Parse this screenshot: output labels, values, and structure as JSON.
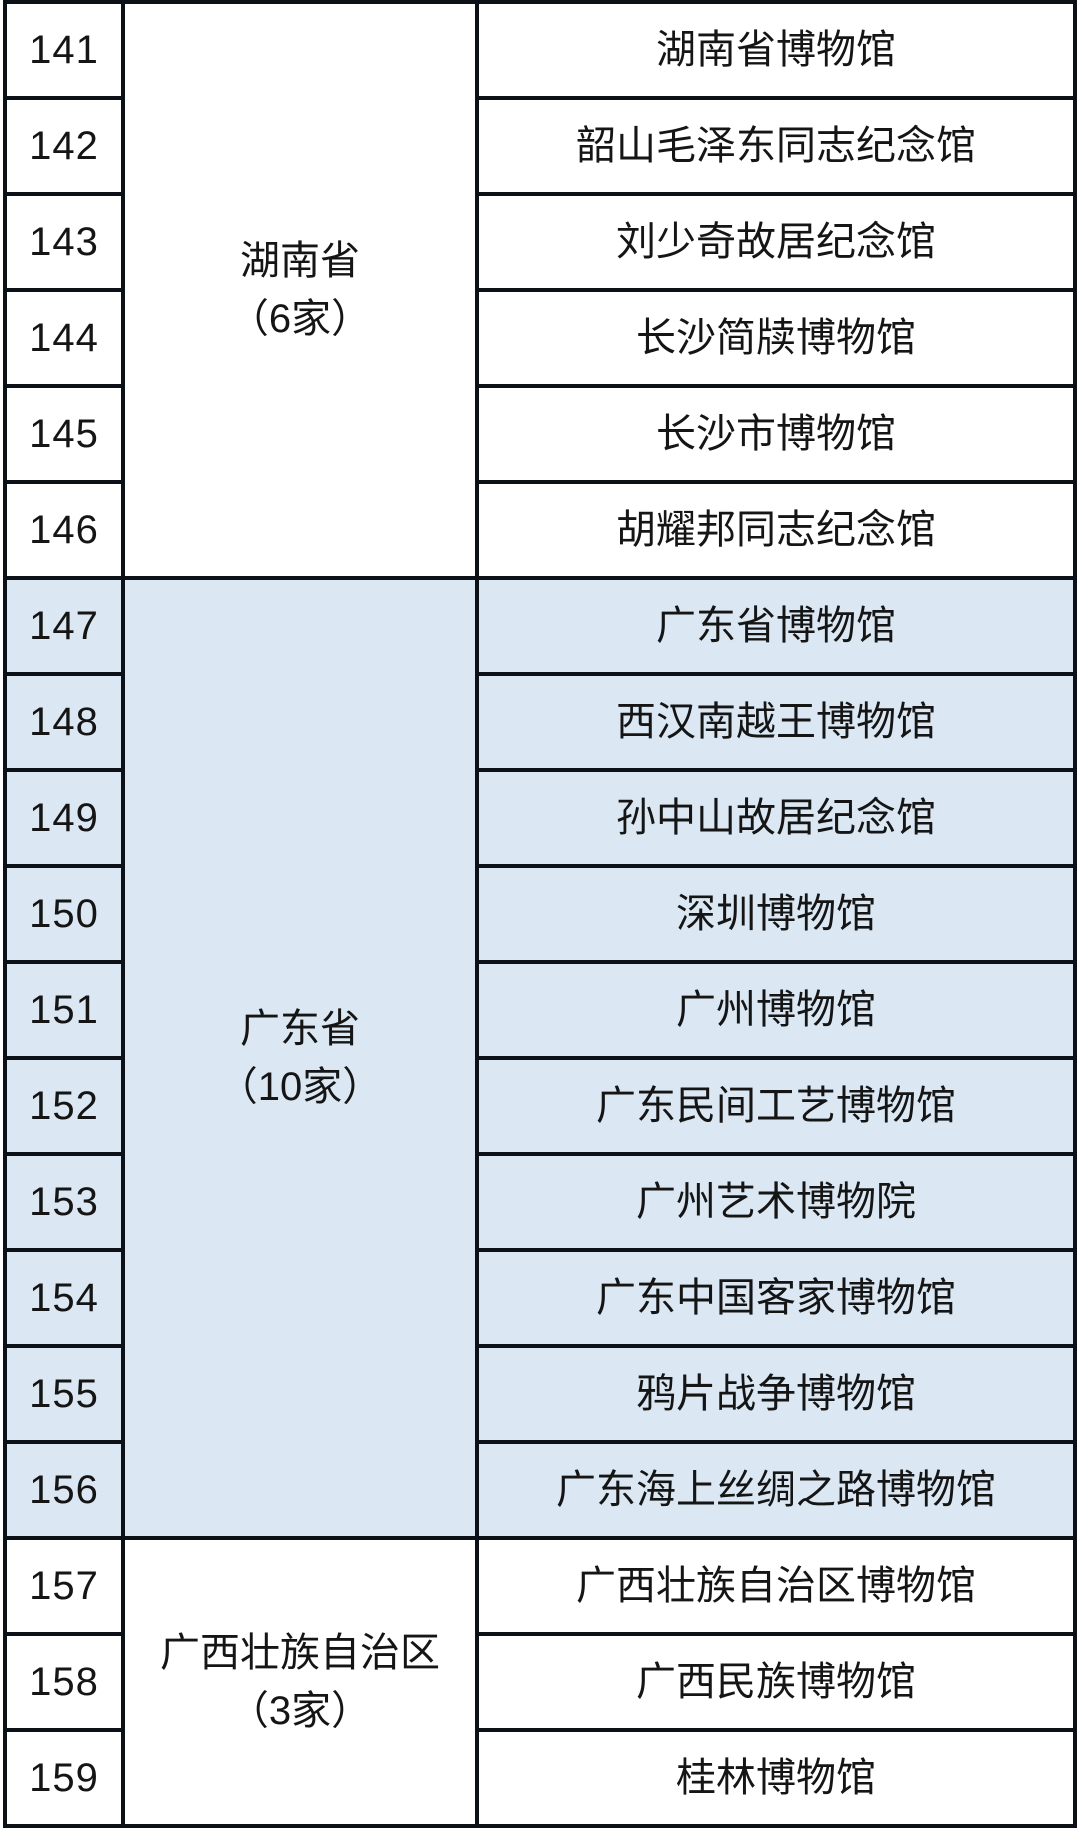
{
  "table": {
    "colors": {
      "highlight_bg": "#dbe8f4",
      "border": "#0c1017",
      "text": "#151515",
      "background": "#ffffff"
    },
    "sections": [
      {
        "province": "湖南省",
        "count_label": "（6家）",
        "highlighted": false,
        "rows": [
          {
            "no": "141",
            "museum": "湖南省博物馆"
          },
          {
            "no": "142",
            "museum": "韶山毛泽东同志纪念馆"
          },
          {
            "no": "143",
            "museum": "刘少奇故居纪念馆"
          },
          {
            "no": "144",
            "museum": "长沙简牍博物馆"
          },
          {
            "no": "145",
            "museum": "长沙市博物馆"
          },
          {
            "no": "146",
            "museum": "胡耀邦同志纪念馆"
          }
        ]
      },
      {
        "province": "广东省",
        "count_label": "（10家）",
        "highlighted": true,
        "rows": [
          {
            "no": "147",
            "museum": "广东省博物馆"
          },
          {
            "no": "148",
            "museum": "西汉南越王博物馆"
          },
          {
            "no": "149",
            "museum": "孙中山故居纪念馆"
          },
          {
            "no": "150",
            "museum": "深圳博物馆"
          },
          {
            "no": "151",
            "museum": "广州博物馆"
          },
          {
            "no": "152",
            "museum": "广东民间工艺博物馆"
          },
          {
            "no": "153",
            "museum": "广州艺术博物院"
          },
          {
            "no": "154",
            "museum": "广东中国客家博物馆"
          },
          {
            "no": "155",
            "museum": "鸦片战争博物馆"
          },
          {
            "no": "156",
            "museum": "广东海上丝绸之路博物馆"
          }
        ]
      },
      {
        "province": "广西壮族自治区",
        "count_label": "（3家）",
        "highlighted": false,
        "rows": [
          {
            "no": "157",
            "museum": "广西壮族自治区博物馆"
          },
          {
            "no": "158",
            "museum": "广西民族博物馆"
          },
          {
            "no": "159",
            "museum": "桂林博物馆"
          }
        ]
      }
    ]
  }
}
